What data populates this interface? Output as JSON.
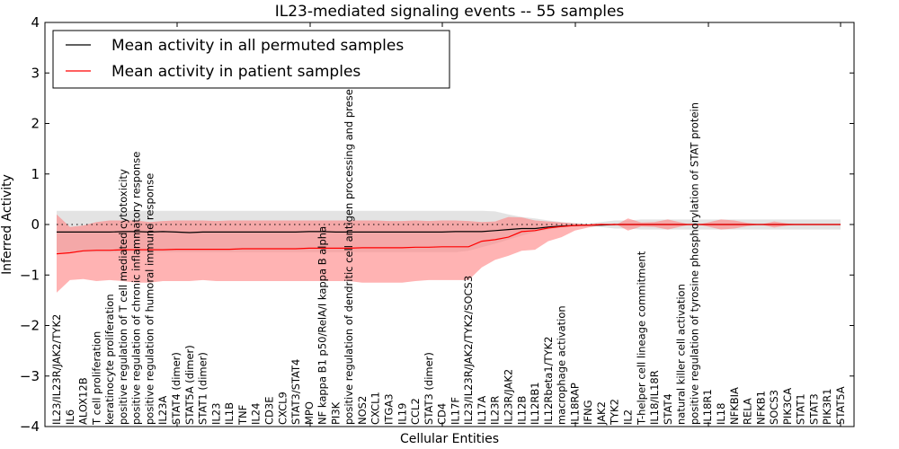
{
  "chart_data": {
    "type": "line",
    "title": "IL23-mediated signaling events -- 55 samples",
    "xlabel": "Cellular Entities",
    "ylabel": "Inferred Activity",
    "ylim": [
      -4,
      4
    ],
    "yticks": [
      4,
      3,
      2,
      1,
      0,
      -1,
      -2,
      -3,
      -4
    ],
    "ytick_labels": [
      "4",
      "3",
      "2",
      "1",
      "0",
      "−1",
      "−2",
      "−3",
      "−4"
    ],
    "grid": false,
    "legend": {
      "placement": "top-left",
      "entries": [
        {
          "label": "Mean activity in all permuted samples",
          "color": "#000000"
        },
        {
          "label": "Mean activity in patient samples",
          "color": "#ff0000"
        }
      ]
    },
    "categories": [
      "IL23/IL23R/JAK2/TYK2",
      "IL6",
      "ALOX12B",
      "T cell proliferation",
      "keratinocyte proliferation",
      "positive regulation of T cell mediated cytotoxicity",
      "positive regulation of chronic inflammatory response",
      "positive regulation of humoral immune response",
      "IL23A",
      "STAT4 (dimer)",
      "STAT5A (dimer)",
      "STAT1 (dimer)",
      "IL23",
      "IL1B",
      "TNF",
      "IL24",
      "CD3E",
      "CXCL9",
      "STAT3/STAT4",
      "MPO",
      "NF kappa B1 p50/RelA/I kappa B alpha",
      "PI3K",
      "positive regulation of dendritic cell antigen processing and presentation",
      "NOS2",
      "CXCL1",
      "ITGA3",
      "IL19",
      "CCL2",
      "STAT3 (dimer)",
      "CD4",
      "IL17F",
      "IL23/IL23R/JAK2/TYK2/SOCS3",
      "IL17A",
      "IL23R",
      "IL23R/JAK2",
      "IL12B",
      "IL12RB1",
      "IL12Rbeta1/TYK2",
      "macrophage activation",
      "IL18RAP",
      "IFNG",
      "JAK2",
      "TYK2",
      "IL2",
      "T-helper cell lineage commitment",
      "IL18/IL18R",
      "STAT4",
      "natural killer cell activation",
      "positive regulation of tyrosine phosphorylation of STAT protein",
      "IL18R1",
      "IL18",
      "NFKBIA",
      "RELA",
      "NFKB1",
      "SOCS3",
      "PIK3CA",
      "STAT1",
      "STAT3",
      "PIK3R1",
      "STAT5A"
    ],
    "series": [
      {
        "name": "Mean activity in all permuted samples",
        "color": "#000000",
        "values": [
          -0.15,
          -0.15,
          -0.15,
          -0.15,
          -0.15,
          -0.14,
          -0.14,
          -0.15,
          -0.14,
          -0.15,
          -0.16,
          -0.15,
          -0.15,
          -0.15,
          -0.15,
          -0.15,
          -0.15,
          -0.15,
          -0.15,
          -0.14,
          -0.14,
          -0.15,
          -0.15,
          -0.15,
          -0.15,
          -0.15,
          -0.15,
          -0.15,
          -0.15,
          -0.15,
          -0.14,
          -0.14,
          -0.14,
          -0.12,
          -0.1,
          -0.08,
          -0.08,
          -0.05,
          -0.03,
          -0.02,
          -0.01,
          -0.01,
          0,
          0,
          0,
          0,
          0,
          0,
          0,
          0,
          0,
          0,
          0,
          0,
          0,
          0,
          0,
          0,
          0,
          0
        ],
        "band_upper": [
          0.27,
          0.27,
          0.27,
          0.27,
          0.27,
          0.27,
          0.27,
          0.27,
          0.27,
          0.27,
          0.27,
          0.27,
          0.27,
          0.27,
          0.27,
          0.27,
          0.27,
          0.27,
          0.27,
          0.27,
          0.27,
          0.27,
          0.27,
          0.27,
          0.27,
          0.27,
          0.27,
          0.27,
          0.27,
          0.27,
          0.27,
          0.27,
          0.27,
          0.26,
          0.2,
          0.15,
          0.12,
          0.08,
          0.05,
          0.03,
          0.02,
          0.05,
          0.08,
          0.08,
          0.1,
          0.1,
          0.1,
          0.1,
          0.1,
          0.1,
          0.1,
          0.1,
          0.1,
          0.1,
          0.1,
          0.1,
          0.1,
          0.1,
          0.1,
          0.1
        ],
        "band_lower": [
          -0.55,
          -0.55,
          -0.55,
          -0.55,
          -0.55,
          -0.55,
          -0.55,
          -0.55,
          -0.55,
          -0.55,
          -0.55,
          -0.55,
          -0.55,
          -0.55,
          -0.55,
          -0.55,
          -0.55,
          -0.55,
          -0.55,
          -0.55,
          -0.55,
          -0.55,
          -0.55,
          -0.55,
          -0.55,
          -0.55,
          -0.55,
          -0.55,
          -0.55,
          -0.55,
          -0.55,
          -0.52,
          -0.45,
          -0.38,
          -0.3,
          -0.22,
          -0.15,
          -0.1,
          -0.05,
          -0.03,
          -0.02,
          -0.05,
          -0.08,
          -0.08,
          -0.1,
          -0.1,
          -0.1,
          -0.1,
          -0.1,
          -0.1,
          -0.1,
          -0.1,
          -0.1,
          -0.1,
          -0.1,
          -0.1,
          -0.1,
          -0.1,
          -0.1,
          -0.1
        ]
      },
      {
        "name": "Mean activity in patient samples",
        "color": "#ff0000",
        "values": [
          -0.58,
          -0.56,
          -0.52,
          -0.51,
          -0.51,
          -0.5,
          -0.5,
          -0.5,
          -0.5,
          -0.49,
          -0.49,
          -0.49,
          -0.49,
          -0.49,
          -0.48,
          -0.48,
          -0.48,
          -0.48,
          -0.48,
          -0.47,
          -0.47,
          -0.47,
          -0.47,
          -0.46,
          -0.46,
          -0.46,
          -0.46,
          -0.45,
          -0.45,
          -0.44,
          -0.44,
          -0.44,
          -0.33,
          -0.3,
          -0.25,
          -0.14,
          -0.12,
          -0.07,
          -0.04,
          -0.02,
          -0.01,
          0,
          0,
          0,
          0,
          0,
          0,
          0,
          0,
          0,
          0,
          0,
          0,
          0,
          0,
          0,
          0,
          0,
          0,
          0
        ],
        "band_upper": [
          0.2,
          -0.05,
          -0.02,
          0.05,
          0.08,
          0.08,
          0.08,
          0.05,
          0.07,
          0.08,
          0.08,
          0.08,
          0.07,
          0.08,
          0.08,
          0.08,
          0.08,
          0.08,
          0.08,
          0.08,
          0.08,
          0.08,
          0.08,
          0.08,
          0.08,
          0.07,
          0.07,
          0.08,
          0.07,
          0.08,
          0.08,
          0.07,
          0.05,
          0.06,
          0.15,
          0.14,
          0.08,
          0.06,
          0.04,
          0.02,
          0.0,
          0.02,
          -0.02,
          0.12,
          0.04,
          0.05,
          0.1,
          0.04,
          -0.02,
          0.04,
          0.1,
          0.08,
          0.03,
          0.0,
          0.06,
          0.02,
          0.0,
          0.0,
          0.0,
          0.0
        ],
        "band_lower": [
          -1.35,
          -1.1,
          -1.08,
          -1.12,
          -1.1,
          -1.12,
          -1.15,
          -1.15,
          -1.12,
          -1.12,
          -1.12,
          -1.1,
          -1.12,
          -1.12,
          -1.12,
          -1.12,
          -1.12,
          -1.12,
          -1.12,
          -1.12,
          -1.12,
          -1.12,
          -1.12,
          -1.15,
          -1.15,
          -1.15,
          -1.15,
          -1.12,
          -1.1,
          -1.1,
          -1.1,
          -1.1,
          -0.85,
          -0.7,
          -0.62,
          -0.52,
          -0.5,
          -0.33,
          -0.25,
          -0.12,
          -0.06,
          -0.02,
          0.02,
          -0.12,
          -0.04,
          -0.05,
          -0.1,
          -0.04,
          0.02,
          -0.04,
          -0.1,
          -0.08,
          -0.03,
          0.0,
          -0.06,
          -0.02,
          0.0,
          0.0,
          0.0,
          0.0
        ]
      }
    ],
    "reference_line": {
      "y": 0,
      "style": "dotted"
    }
  }
}
